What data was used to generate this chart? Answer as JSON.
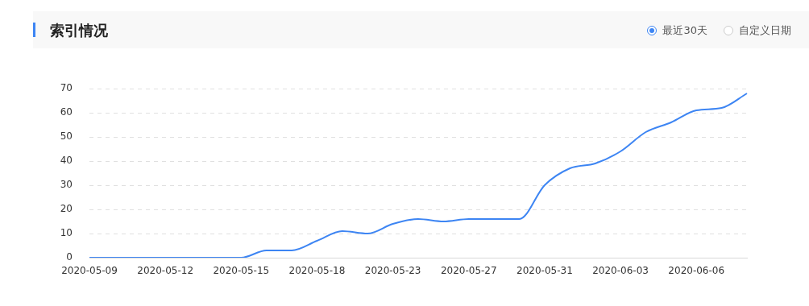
{
  "chart_data": {
    "type": "line",
    "title": "索引情况",
    "annotations": [
      "最近30天",
      "自定义日期"
    ],
    "categories": [
      "2020-05-09",
      null,
      null,
      "2020-05-12",
      null,
      null,
      "2020-05-15",
      null,
      null,
      "2020-05-18",
      null,
      null,
      "2020-05-23",
      null,
      null,
      "2020-05-27",
      null,
      null,
      "2020-05-31",
      null,
      null,
      "2020-06-03",
      null,
      null,
      "2020-06-06",
      null,
      null
    ],
    "series": [
      {
        "color": "#3d85f3",
        "values": [
          0,
          0,
          0,
          0,
          0,
          0,
          0,
          3,
          3,
          7,
          11,
          10,
          14,
          16,
          15,
          16,
          16,
          16,
          30,
          37,
          39,
          44,
          52,
          56,
          61,
          62,
          68
        ]
      }
    ],
    "ylim": [
      0,
      70
    ],
    "yticks": [
      0,
      10,
      20,
      30,
      40,
      50,
      60,
      70
    ],
    "grid": "y",
    "legend": false,
    "marker": "none",
    "line_style": "solid"
  }
}
